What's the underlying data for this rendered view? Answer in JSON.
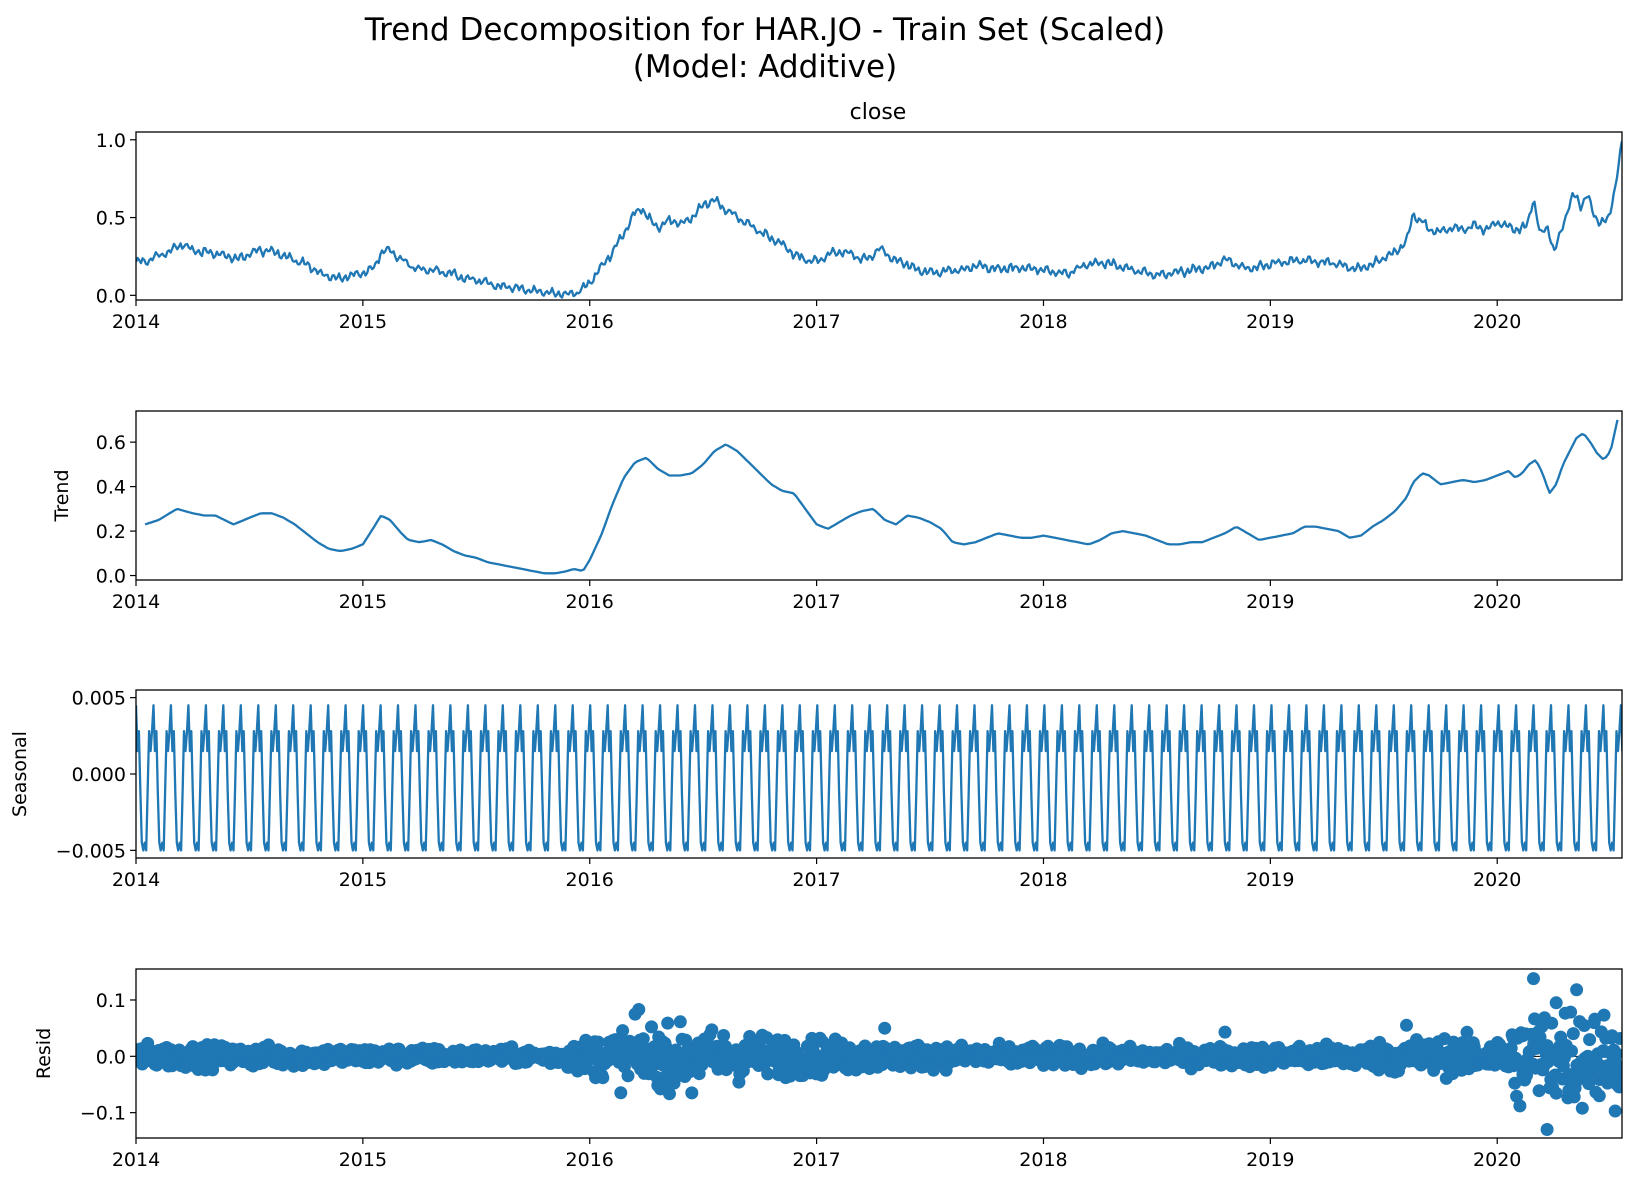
{
  "figure": {
    "title_line1": "Trend Decomposition for HAR.JO - Train Set (Scaled)",
    "title_line2": "(Model: Additive)"
  },
  "colors": {
    "series": "#1f77b4",
    "axes": "#000000",
    "background": "#ffffff"
  },
  "chart_data": [
    {
      "type": "line",
      "title": "close",
      "ylabel": "",
      "xlim": [
        2014.0,
        2020.55
      ],
      "ylim": [
        -0.03,
        1.05
      ],
      "xticks": [
        2014,
        2015,
        2016,
        2017,
        2018,
        2019,
        2020
      ],
      "xtick_labels": [
        "2014",
        "2015",
        "2016",
        "2017",
        "2018",
        "2019",
        "2020"
      ],
      "yticks": [
        0.0,
        0.5,
        1.0
      ],
      "ytick_labels": [
        "0.0",
        "0.5",
        "1.0"
      ],
      "series": [
        {
          "x": [
            2014.0,
            2014.05,
            2014.1,
            2014.15,
            2014.2,
            2014.25,
            2014.3,
            2014.35,
            2014.4,
            2014.45,
            2014.5,
            2014.55,
            2014.6,
            2014.65,
            2014.7,
            2014.75,
            2014.8,
            2014.85,
            2014.9,
            2014.95,
            2015.0,
            2015.05,
            2015.08,
            2015.12,
            2015.15,
            2015.2,
            2015.25,
            2015.3,
            2015.35,
            2015.4,
            2015.45,
            2015.5,
            2015.55,
            2015.6,
            2015.65,
            2015.7,
            2015.75,
            2015.8,
            2015.85,
            2015.9,
            2015.95,
            2016.0,
            2016.05,
            2016.1,
            2016.15,
            2016.2,
            2016.23,
            2016.27,
            2016.3,
            2016.35,
            2016.4,
            2016.45,
            2016.5,
            2016.55,
            2016.6,
            2016.65,
            2016.7,
            2016.75,
            2016.8,
            2016.85,
            2016.9,
            2016.95,
            2017.0,
            2017.05,
            2017.1,
            2017.15,
            2017.2,
            2017.25,
            2017.28,
            2017.32,
            2017.35,
            2017.4,
            2017.45,
            2017.5,
            2017.55,
            2017.6,
            2017.65,
            2017.7,
            2017.75,
            2017.8,
            2017.85,
            2017.9,
            2017.95,
            2018.0,
            2018.05,
            2018.1,
            2018.15,
            2018.2,
            2018.25,
            2018.3,
            2018.35,
            2018.4,
            2018.45,
            2018.5,
            2018.55,
            2018.6,
            2018.65,
            2018.7,
            2018.75,
            2018.8,
            2018.85,
            2018.9,
            2018.95,
            2019.0,
            2019.05,
            2019.1,
            2019.15,
            2019.2,
            2019.25,
            2019.3,
            2019.35,
            2019.4,
            2019.45,
            2019.5,
            2019.55,
            2019.6,
            2019.63,
            2019.67,
            2019.7,
            2019.75,
            2019.8,
            2019.85,
            2019.9,
            2019.95,
            2020.0,
            2020.05,
            2020.1,
            2020.13,
            2020.16,
            2020.19,
            2020.22,
            2020.25,
            2020.28,
            2020.31,
            2020.34,
            2020.37,
            2020.4,
            2020.43,
            2020.46,
            2020.49,
            2020.52,
            2020.55
          ],
          "y": [
            0.21,
            0.22,
            0.26,
            0.28,
            0.33,
            0.29,
            0.28,
            0.27,
            0.25,
            0.23,
            0.27,
            0.29,
            0.28,
            0.26,
            0.23,
            0.2,
            0.15,
            0.12,
            0.11,
            0.13,
            0.14,
            0.18,
            0.27,
            0.29,
            0.25,
            0.2,
            0.16,
            0.17,
            0.15,
            0.14,
            0.11,
            0.1,
            0.08,
            0.06,
            0.05,
            0.04,
            0.03,
            0.02,
            0.01,
            0.01,
            0.02,
            0.08,
            0.18,
            0.28,
            0.4,
            0.53,
            0.56,
            0.48,
            0.44,
            0.48,
            0.46,
            0.5,
            0.58,
            0.61,
            0.55,
            0.5,
            0.46,
            0.41,
            0.37,
            0.33,
            0.26,
            0.23,
            0.22,
            0.26,
            0.28,
            0.27,
            0.23,
            0.26,
            0.3,
            0.25,
            0.22,
            0.2,
            0.16,
            0.15,
            0.15,
            0.16,
            0.17,
            0.19,
            0.18,
            0.17,
            0.17,
            0.18,
            0.17,
            0.16,
            0.15,
            0.14,
            0.17,
            0.2,
            0.21,
            0.2,
            0.18,
            0.16,
            0.14,
            0.13,
            0.14,
            0.15,
            0.16,
            0.17,
            0.19,
            0.23,
            0.2,
            0.17,
            0.18,
            0.2,
            0.21,
            0.22,
            0.23,
            0.22,
            0.21,
            0.2,
            0.18,
            0.17,
            0.2,
            0.24,
            0.28,
            0.35,
            0.52,
            0.47,
            0.42,
            0.41,
            0.44,
            0.42,
            0.45,
            0.42,
            0.47,
            0.44,
            0.42,
            0.45,
            0.62,
            0.38,
            0.45,
            0.28,
            0.4,
            0.55,
            0.65,
            0.58,
            0.64,
            0.5,
            0.47,
            0.48,
            0.7,
            0.98
          ]
        }
      ]
    },
    {
      "type": "line",
      "title": "",
      "ylabel": "Trend",
      "xlim": [
        2014.0,
        2020.55
      ],
      "ylim": [
        -0.02,
        0.74
      ],
      "xticks": [
        2014,
        2015,
        2016,
        2017,
        2018,
        2019,
        2020
      ],
      "xtick_labels": [
        "2014",
        "2015",
        "2016",
        "2017",
        "2018",
        "2019",
        "2020"
      ],
      "yticks": [
        0.0,
        0.2,
        0.4,
        0.6
      ],
      "ytick_labels": [
        "0.0",
        "0.2",
        "0.4",
        "0.6"
      ],
      "series": [
        {
          "x": [
            2014.04,
            2014.1,
            2014.18,
            2014.25,
            2014.3,
            2014.35,
            2014.43,
            2014.5,
            2014.55,
            2014.6,
            2014.65,
            2014.7,
            2014.75,
            2014.8,
            2014.85,
            2014.9,
            2014.95,
            2015.0,
            2015.05,
            2015.08,
            2015.12,
            2015.17,
            2015.2,
            2015.25,
            2015.3,
            2015.35,
            2015.4,
            2015.45,
            2015.5,
            2015.55,
            2015.6,
            2015.65,
            2015.7,
            2015.75,
            2015.8,
            2015.85,
            2015.9,
            2015.93,
            2015.97,
            2016.0,
            2016.05,
            2016.1,
            2016.15,
            2016.2,
            2016.25,
            2016.3,
            2016.35,
            2016.4,
            2016.45,
            2016.5,
            2016.55,
            2016.6,
            2016.65,
            2016.7,
            2016.75,
            2016.8,
            2016.85,
            2016.9,
            2016.95,
            2017.0,
            2017.05,
            2017.1,
            2017.15,
            2017.2,
            2017.25,
            2017.3,
            2017.35,
            2017.4,
            2017.45,
            2017.5,
            2017.55,
            2017.6,
            2017.65,
            2017.7,
            2017.75,
            2017.8,
            2017.85,
            2017.9,
            2017.95,
            2018.0,
            2018.05,
            2018.1,
            2018.15,
            2018.2,
            2018.25,
            2018.3,
            2018.35,
            2018.4,
            2018.45,
            2018.5,
            2018.55,
            2018.6,
            2018.65,
            2018.7,
            2018.75,
            2018.8,
            2018.85,
            2018.9,
            2018.95,
            2019.0,
            2019.05,
            2019.1,
            2019.15,
            2019.2,
            2019.25,
            2019.3,
            2019.35,
            2019.4,
            2019.45,
            2019.5,
            2019.55,
            2019.6,
            2019.63,
            2019.67,
            2019.7,
            2019.75,
            2019.8,
            2019.85,
            2019.9,
            2019.95,
            2020.0,
            2020.05,
            2020.08,
            2020.11,
            2020.14,
            2020.17,
            2020.2,
            2020.23,
            2020.26,
            2020.29,
            2020.32,
            2020.35,
            2020.38,
            2020.41,
            2020.44,
            2020.47,
            2020.5,
            2020.53
          ],
          "y": [
            0.23,
            0.25,
            0.3,
            0.28,
            0.27,
            0.27,
            0.23,
            0.26,
            0.28,
            0.28,
            0.26,
            0.23,
            0.19,
            0.15,
            0.12,
            0.11,
            0.12,
            0.14,
            0.22,
            0.27,
            0.25,
            0.19,
            0.16,
            0.15,
            0.16,
            0.14,
            0.11,
            0.09,
            0.08,
            0.06,
            0.05,
            0.04,
            0.03,
            0.02,
            0.01,
            0.01,
            0.02,
            0.03,
            0.02,
            0.07,
            0.18,
            0.32,
            0.44,
            0.51,
            0.53,
            0.48,
            0.45,
            0.45,
            0.46,
            0.5,
            0.56,
            0.59,
            0.56,
            0.51,
            0.46,
            0.41,
            0.38,
            0.37,
            0.3,
            0.23,
            0.21,
            0.24,
            0.27,
            0.29,
            0.3,
            0.25,
            0.23,
            0.27,
            0.26,
            0.24,
            0.21,
            0.15,
            0.14,
            0.15,
            0.17,
            0.19,
            0.18,
            0.17,
            0.17,
            0.18,
            0.17,
            0.16,
            0.15,
            0.14,
            0.16,
            0.19,
            0.2,
            0.19,
            0.18,
            0.16,
            0.14,
            0.14,
            0.15,
            0.15,
            0.17,
            0.19,
            0.22,
            0.19,
            0.16,
            0.17,
            0.18,
            0.19,
            0.22,
            0.22,
            0.21,
            0.2,
            0.17,
            0.18,
            0.22,
            0.25,
            0.29,
            0.35,
            0.42,
            0.46,
            0.45,
            0.41,
            0.42,
            0.43,
            0.42,
            0.43,
            0.45,
            0.47,
            0.44,
            0.46,
            0.5,
            0.52,
            0.46,
            0.37,
            0.41,
            0.5,
            0.56,
            0.62,
            0.64,
            0.6,
            0.55,
            0.52,
            0.56,
            0.7
          ]
        }
      ]
    },
    {
      "type": "line",
      "title": "",
      "ylabel": "Seasonal",
      "xlim": [
        2014.0,
        2020.55
      ],
      "ylim": [
        -0.0055,
        0.0055
      ],
      "period_years": 0.077,
      "pattern": [
        0.0045,
        0.0015,
        0.0028,
        -0.0012,
        -0.0045,
        -0.005,
        -0.0045,
        -0.005,
        -0.0012,
        0.0028,
        0.0015,
        0.0028
      ],
      "xticks": [
        2014,
        2015,
        2016,
        2017,
        2018,
        2019,
        2020
      ],
      "xtick_labels": [
        "2014",
        "2015",
        "2016",
        "2017",
        "2018",
        "2019",
        "2020"
      ],
      "yticks": [
        -0.005,
        0.0,
        0.005
      ],
      "ytick_labels": [
        "−0.005",
        "0.000",
        "0.005"
      ]
    },
    {
      "type": "scatter",
      "title": "",
      "ylabel": "Resid",
      "xlim": [
        2014.0,
        2020.55
      ],
      "ylim": [
        -0.145,
        0.155
      ],
      "baseline": 0.0,
      "xticks": [
        2014,
        2015,
        2016,
        2017,
        2018,
        2019,
        2020
      ],
      "xtick_labels": [
        "2014",
        "2015",
        "2016",
        "2017",
        "2018",
        "2019",
        "2020"
      ],
      "yticks": [
        -0.1,
        0.0,
        0.1
      ],
      "ytick_labels": [
        "−0.1",
        "0.0",
        "0.1"
      ],
      "amplitude_x": [
        2014.0,
        2015.8,
        2016.0,
        2016.2,
        2016.8,
        2017.4,
        2018.5,
        2019.4,
        2019.6,
        2020.0,
        2020.1,
        2020.3,
        2020.55
      ],
      "amplitude_y": [
        0.02,
        0.012,
        0.03,
        0.055,
        0.035,
        0.02,
        0.015,
        0.02,
        0.03,
        0.03,
        0.07,
        0.09,
        0.06
      ],
      "point_count": 1650,
      "extreme_points": [
        {
          "x": 2020.16,
          "y": 0.138
        },
        {
          "x": 2020.22,
          "y": -0.13
        },
        {
          "x": 2020.35,
          "y": 0.118
        },
        {
          "x": 2020.26,
          "y": 0.095
        },
        {
          "x": 2020.43,
          "y": 0.066
        },
        {
          "x": 2020.52,
          "y": -0.097
        },
        {
          "x": 2020.1,
          "y": -0.088
        },
        {
          "x": 2020.45,
          "y": -0.07
        },
        {
          "x": 2019.6,
          "y": 0.055
        },
        {
          "x": 2016.2,
          "y": 0.075
        },
        {
          "x": 2016.45,
          "y": -0.065
        },
        {
          "x": 2017.3,
          "y": 0.05
        },
        {
          "x": 2018.8,
          "y": 0.043
        }
      ]
    }
  ]
}
